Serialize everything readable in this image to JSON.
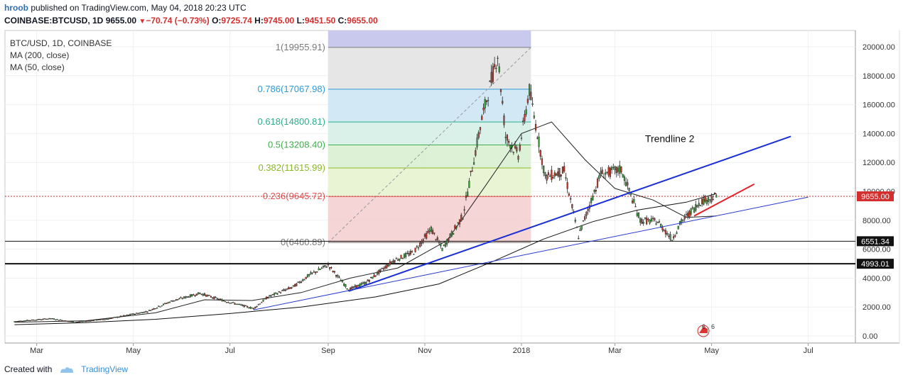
{
  "header": {
    "user": "hroob",
    "published": "published on TradingView.com, May 04, 2018 20:23 UTC",
    "symbol": "COINBASE:BTCUSD, 1D",
    "price": "9655.00",
    "change_arrow": "▼",
    "change": "−70.74 (−0.73%)",
    "open_label": "O:",
    "open": "9725.74",
    "high_label": "H:",
    "high": "9745.00",
    "low_label": "L:",
    "low": "9451.50",
    "close_label": "C:",
    "close": "9655.00"
  },
  "legend": {
    "line1": "BTC/USD, 1D, COINBASE",
    "line2": "MA (200, close)",
    "line3": "MA (50, close)"
  },
  "footer": {
    "created_with": "Created with",
    "brand": "TradingView"
  },
  "chart_data": {
    "type": "candlestick",
    "instrument": "BTC/USD",
    "interval": "1D",
    "exchange": "COINBASE",
    "x_tick_labels": [
      "Mar",
      "May",
      "Jul",
      "Sep",
      "Nov",
      "2018",
      "Mar",
      "May",
      "Jul"
    ],
    "y_ticks": [
      0,
      2000,
      4000,
      6000,
      8000,
      10000,
      12000,
      14000,
      16000,
      18000,
      20000
    ],
    "y_tick_labels": [
      "0.00",
      "2000.00",
      "4000.00",
      "6000.00",
      "8000.00",
      "10000.00",
      "12000.00",
      "14000.00",
      "16000.00",
      "18000.00",
      "20000.00"
    ],
    "ylim": [
      -500,
      21000
    ],
    "last_price": 9655.0,
    "last_price_label": "9655.00",
    "horizontal_levels": [
      {
        "value": 6551.34,
        "label": "6551.34"
      },
      {
        "value": 4993.01,
        "label": "4993.01"
      }
    ],
    "fibonacci": {
      "start_date": "2017-09-01",
      "end_date": "2018-01-07",
      "levels": [
        {
          "ratio": "1",
          "price": 19955.91,
          "label": "1(19955.91)",
          "color": "#7a7a7a"
        },
        {
          "ratio": "0.786",
          "price": 17067.98,
          "label": "0.786(17067.98)",
          "color": "#2f9bd8"
        },
        {
          "ratio": "0.618",
          "price": 14800.81,
          "label": "0.618(14800.81)",
          "color": "#2bb08a"
        },
        {
          "ratio": "0.5",
          "price": 13208.4,
          "label": "0.5(13208.40)",
          "color": "#3fae4a"
        },
        {
          "ratio": "0.382",
          "price": 11615.99,
          "label": "0.382(11615.99)",
          "color": "#8bb82a"
        },
        {
          "ratio": "0.236",
          "price": 9645.72,
          "label": "0.236(9645.72)",
          "color": "#e05555"
        },
        {
          "ratio": "0",
          "price": 6460.89,
          "label": "0(6460.89)",
          "color": "#7a7a7a"
        }
      ],
      "band_colors": [
        "#c9c9ee",
        "#e3e3e3",
        "#cde6f4",
        "#d5efe6",
        "#d8f0d2",
        "#e7f3cf",
        "#f4d0d0"
      ]
    },
    "trendlines": [
      {
        "name": "Trendline 2",
        "label": "Trendline 2",
        "from": {
          "date": "2017-09-14",
          "price": 3100
        },
        "to": {
          "date": "2018-06-20",
          "price": 13800
        },
        "color": "#1a2fd6",
        "width": 2
      },
      {
        "from": {
          "date": "2017-07-16",
          "price": 1800
        },
        "to": {
          "date": "2018-07-01",
          "price": 9600
        },
        "color": "#2a3ad0",
        "width": 1
      },
      {
        "from": {
          "date": "2018-04-20",
          "price": 8300
        },
        "to": {
          "date": "2018-05-28",
          "price": 10500
        },
        "color": "#e3242b",
        "width": 2
      }
    ],
    "ma200": [
      {
        "date": "2017-02-15",
        "price": 780
      },
      {
        "date": "2017-04-01",
        "price": 920
      },
      {
        "date": "2017-05-15",
        "price": 1150
      },
      {
        "date": "2017-07-01",
        "price": 1550
      },
      {
        "date": "2017-08-15",
        "price": 2000
      },
      {
        "date": "2017-10-01",
        "price": 2700
      },
      {
        "date": "2017-11-10",
        "price": 3600
      },
      {
        "date": "2017-12-15",
        "price": 5200
      },
      {
        "date": "2018-01-15",
        "price": 6700
      },
      {
        "date": "2018-02-15",
        "price": 7900
      },
      {
        "date": "2018-03-15",
        "price": 8700
      },
      {
        "date": "2018-04-15",
        "price": 9250
      },
      {
        "date": "2018-05-04",
        "price": 9850
      }
    ],
    "ma50": [
      {
        "date": "2017-02-15",
        "price": 950
      },
      {
        "date": "2017-04-01",
        "price": 1050
      },
      {
        "date": "2017-05-15",
        "price": 1600
      },
      {
        "date": "2017-06-15",
        "price": 2500
      },
      {
        "date": "2017-07-15",
        "price": 2450
      },
      {
        "date": "2017-08-15",
        "price": 3000
      },
      {
        "date": "2017-09-15",
        "price": 4000
      },
      {
        "date": "2017-10-15",
        "price": 4700
      },
      {
        "date": "2017-11-15",
        "price": 6600
      },
      {
        "date": "2017-12-10",
        "price": 10500
      },
      {
        "date": "2018-01-01",
        "price": 14000
      },
      {
        "date": "2018-01-20",
        "price": 14800
      },
      {
        "date": "2018-02-10",
        "price": 12200
      },
      {
        "date": "2018-03-01",
        "price": 10200
      },
      {
        "date": "2018-03-25",
        "price": 9400
      },
      {
        "date": "2018-04-15",
        "price": 8200
      },
      {
        "date": "2018-05-04",
        "price": 8300
      }
    ],
    "price_path": [
      {
        "date": "2017-02-15",
        "price": 1000
      },
      {
        "date": "2017-03-10",
        "price": 1200
      },
      {
        "date": "2017-03-25",
        "price": 950
      },
      {
        "date": "2017-04-15",
        "price": 1180
      },
      {
        "date": "2017-05-10",
        "price": 1700
      },
      {
        "date": "2017-05-25",
        "price": 2400
      },
      {
        "date": "2017-06-12",
        "price": 2950
      },
      {
        "date": "2017-06-25",
        "price": 2500
      },
      {
        "date": "2017-07-16",
        "price": 1900
      },
      {
        "date": "2017-07-25",
        "price": 2700
      },
      {
        "date": "2017-08-10",
        "price": 3400
      },
      {
        "date": "2017-08-20",
        "price": 4200
      },
      {
        "date": "2017-09-01",
        "price": 4900
      },
      {
        "date": "2017-09-14",
        "price": 3200
      },
      {
        "date": "2017-09-25",
        "price": 3700
      },
      {
        "date": "2017-10-12",
        "price": 5200
      },
      {
        "date": "2017-10-25",
        "price": 5800
      },
      {
        "date": "2017-11-05",
        "price": 7400
      },
      {
        "date": "2017-11-12",
        "price": 6000
      },
      {
        "date": "2017-11-25",
        "price": 8300
      },
      {
        "date": "2017-12-07",
        "price": 15000
      },
      {
        "date": "2017-12-17",
        "price": 19500
      },
      {
        "date": "2017-12-22",
        "price": 13800
      },
      {
        "date": "2017-12-30",
        "price": 12500
      },
      {
        "date": "2018-01-06",
        "price": 17000
      },
      {
        "date": "2018-01-16",
        "price": 11000
      },
      {
        "date": "2018-01-28",
        "price": 11400
      },
      {
        "date": "2018-02-06",
        "price": 6900
      },
      {
        "date": "2018-02-20",
        "price": 11200
      },
      {
        "date": "2018-03-05",
        "price": 11500
      },
      {
        "date": "2018-03-17",
        "price": 8000
      },
      {
        "date": "2018-03-28",
        "price": 7900
      },
      {
        "date": "2018-04-06",
        "price": 6700
      },
      {
        "date": "2018-04-12",
        "price": 7900
      },
      {
        "date": "2018-04-24",
        "price": 9300
      },
      {
        "date": "2018-05-04",
        "price": 9655
      }
    ]
  }
}
